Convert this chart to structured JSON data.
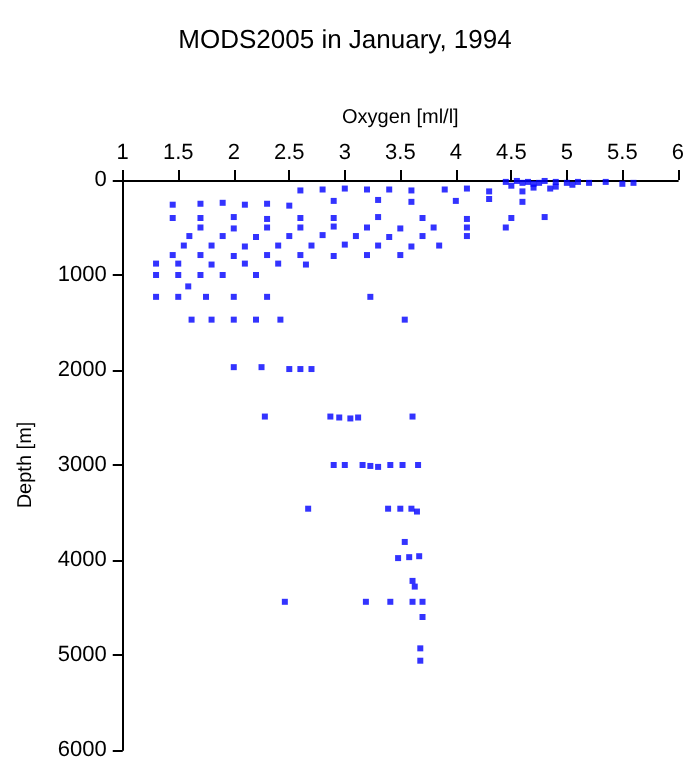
{
  "chart_data": {
    "type": "scatter",
    "title": "MODS2005 in January, 1994",
    "xlabel": "Oxygen [ml/l]",
    "ylabel": "Depth [m]",
    "marker": "square",
    "grid": false,
    "xlim": [
      1,
      6
    ],
    "ylim": [
      6000,
      0
    ],
    "xticks": [
      1,
      1.5,
      2,
      2.5,
      3,
      3.5,
      4,
      4.5,
      5,
      5.5,
      6
    ],
    "yticks": [
      0,
      1000,
      2000,
      3000,
      4000,
      5000,
      6000
    ],
    "series": [
      {
        "color": "#0000ff",
        "x": [
          4.45,
          4.55,
          4.6,
          4.65,
          4.7,
          4.75,
          4.8,
          4.9,
          5.0,
          5.1,
          5.2,
          5.35,
          5.5,
          5.6,
          4.5,
          4.7,
          4.9,
          5.05,
          4.6,
          4.85,
          2.6,
          2.8,
          3.0,
          3.2,
          3.4,
          3.6,
          3.9,
          4.1,
          4.3,
          1.45,
          1.7,
          1.9,
          2.1,
          2.3,
          2.5,
          2.9,
          3.3,
          3.6,
          4.0,
          4.3,
          4.6,
          1.45,
          1.7,
          2.0,
          2.3,
          2.6,
          2.9,
          3.3,
          3.7,
          4.1,
          4.5,
          4.8,
          1.7,
          2.0,
          2.3,
          2.6,
          2.9,
          3.2,
          3.5,
          3.8,
          4.1,
          4.45,
          1.6,
          1.9,
          2.2,
          2.5,
          2.8,
          3.1,
          3.4,
          3.7,
          4.1,
          1.55,
          1.8,
          2.1,
          2.4,
          2.7,
          3.0,
          3.3,
          3.6,
          3.85,
          1.45,
          1.7,
          2.0,
          2.3,
          2.6,
          2.9,
          3.2,
          3.5,
          1.3,
          1.5,
          1.8,
          2.1,
          2.4,
          2.65,
          1.3,
          1.5,
          1.7,
          1.9,
          2.2,
          1.59,
          1.3,
          1.5,
          1.75,
          2.0,
          2.3,
          3.23,
          1.62,
          1.8,
          2.0,
          2.2,
          2.42,
          3.54,
          2.0,
          2.25,
          2.5,
          2.6,
          2.7,
          2.28,
          2.87,
          2.95,
          3.05,
          3.12,
          3.61,
          2.9,
          3.0,
          3.16,
          3.23,
          3.3,
          3.41,
          3.52,
          3.66,
          2.67,
          3.39,
          3.5,
          3.6,
          3.65,
          3.54,
          3.48,
          3.58,
          3.67,
          3.61,
          3.63,
          2.46,
          3.19,
          3.41,
          3.61,
          3.7,
          3.7,
          3.68,
          3.68
        ],
        "values": [
          20,
          10,
          30,
          20,
          40,
          30,
          10,
          20,
          30,
          20,
          30,
          20,
          40,
          30,
          60,
          80,
          70,
          50,
          120,
          90,
          110,
          100,
          90,
          100,
          100,
          110,
          100,
          90,
          120,
          260,
          250,
          240,
          260,
          250,
          270,
          220,
          210,
          230,
          220,
          200,
          230,
          400,
          400,
          390,
          410,
          400,
          400,
          390,
          400,
          410,
          400,
          390,
          500,
          510,
          500,
          500,
          490,
          500,
          510,
          500,
          500,
          500,
          590,
          590,
          600,
          590,
          580,
          590,
          600,
          590,
          590,
          690,
          690,
          700,
          690,
          690,
          680,
          690,
          700,
          690,
          790,
          790,
          800,
          790,
          790,
          800,
          790,
          790,
          880,
          880,
          890,
          880,
          880,
          890,
          1000,
          1000,
          1000,
          1000,
          1000,
          1120,
          1230,
          1230,
          1230,
          1230,
          1230,
          1230,
          1470,
          1470,
          1470,
          1470,
          1470,
          1470,
          1970,
          1970,
          1990,
          1990,
          1990,
          2490,
          2490,
          2500,
          2510,
          2500,
          2490,
          3000,
          3000,
          3000,
          3010,
          3020,
          3000,
          3000,
          3000,
          3460,
          3460,
          3460,
          3460,
          3490,
          3810,
          3980,
          3970,
          3960,
          4220,
          4280,
          4440,
          4440,
          4440,
          4440,
          4440,
          4600,
          4930,
          5060
        ]
      }
    ]
  }
}
